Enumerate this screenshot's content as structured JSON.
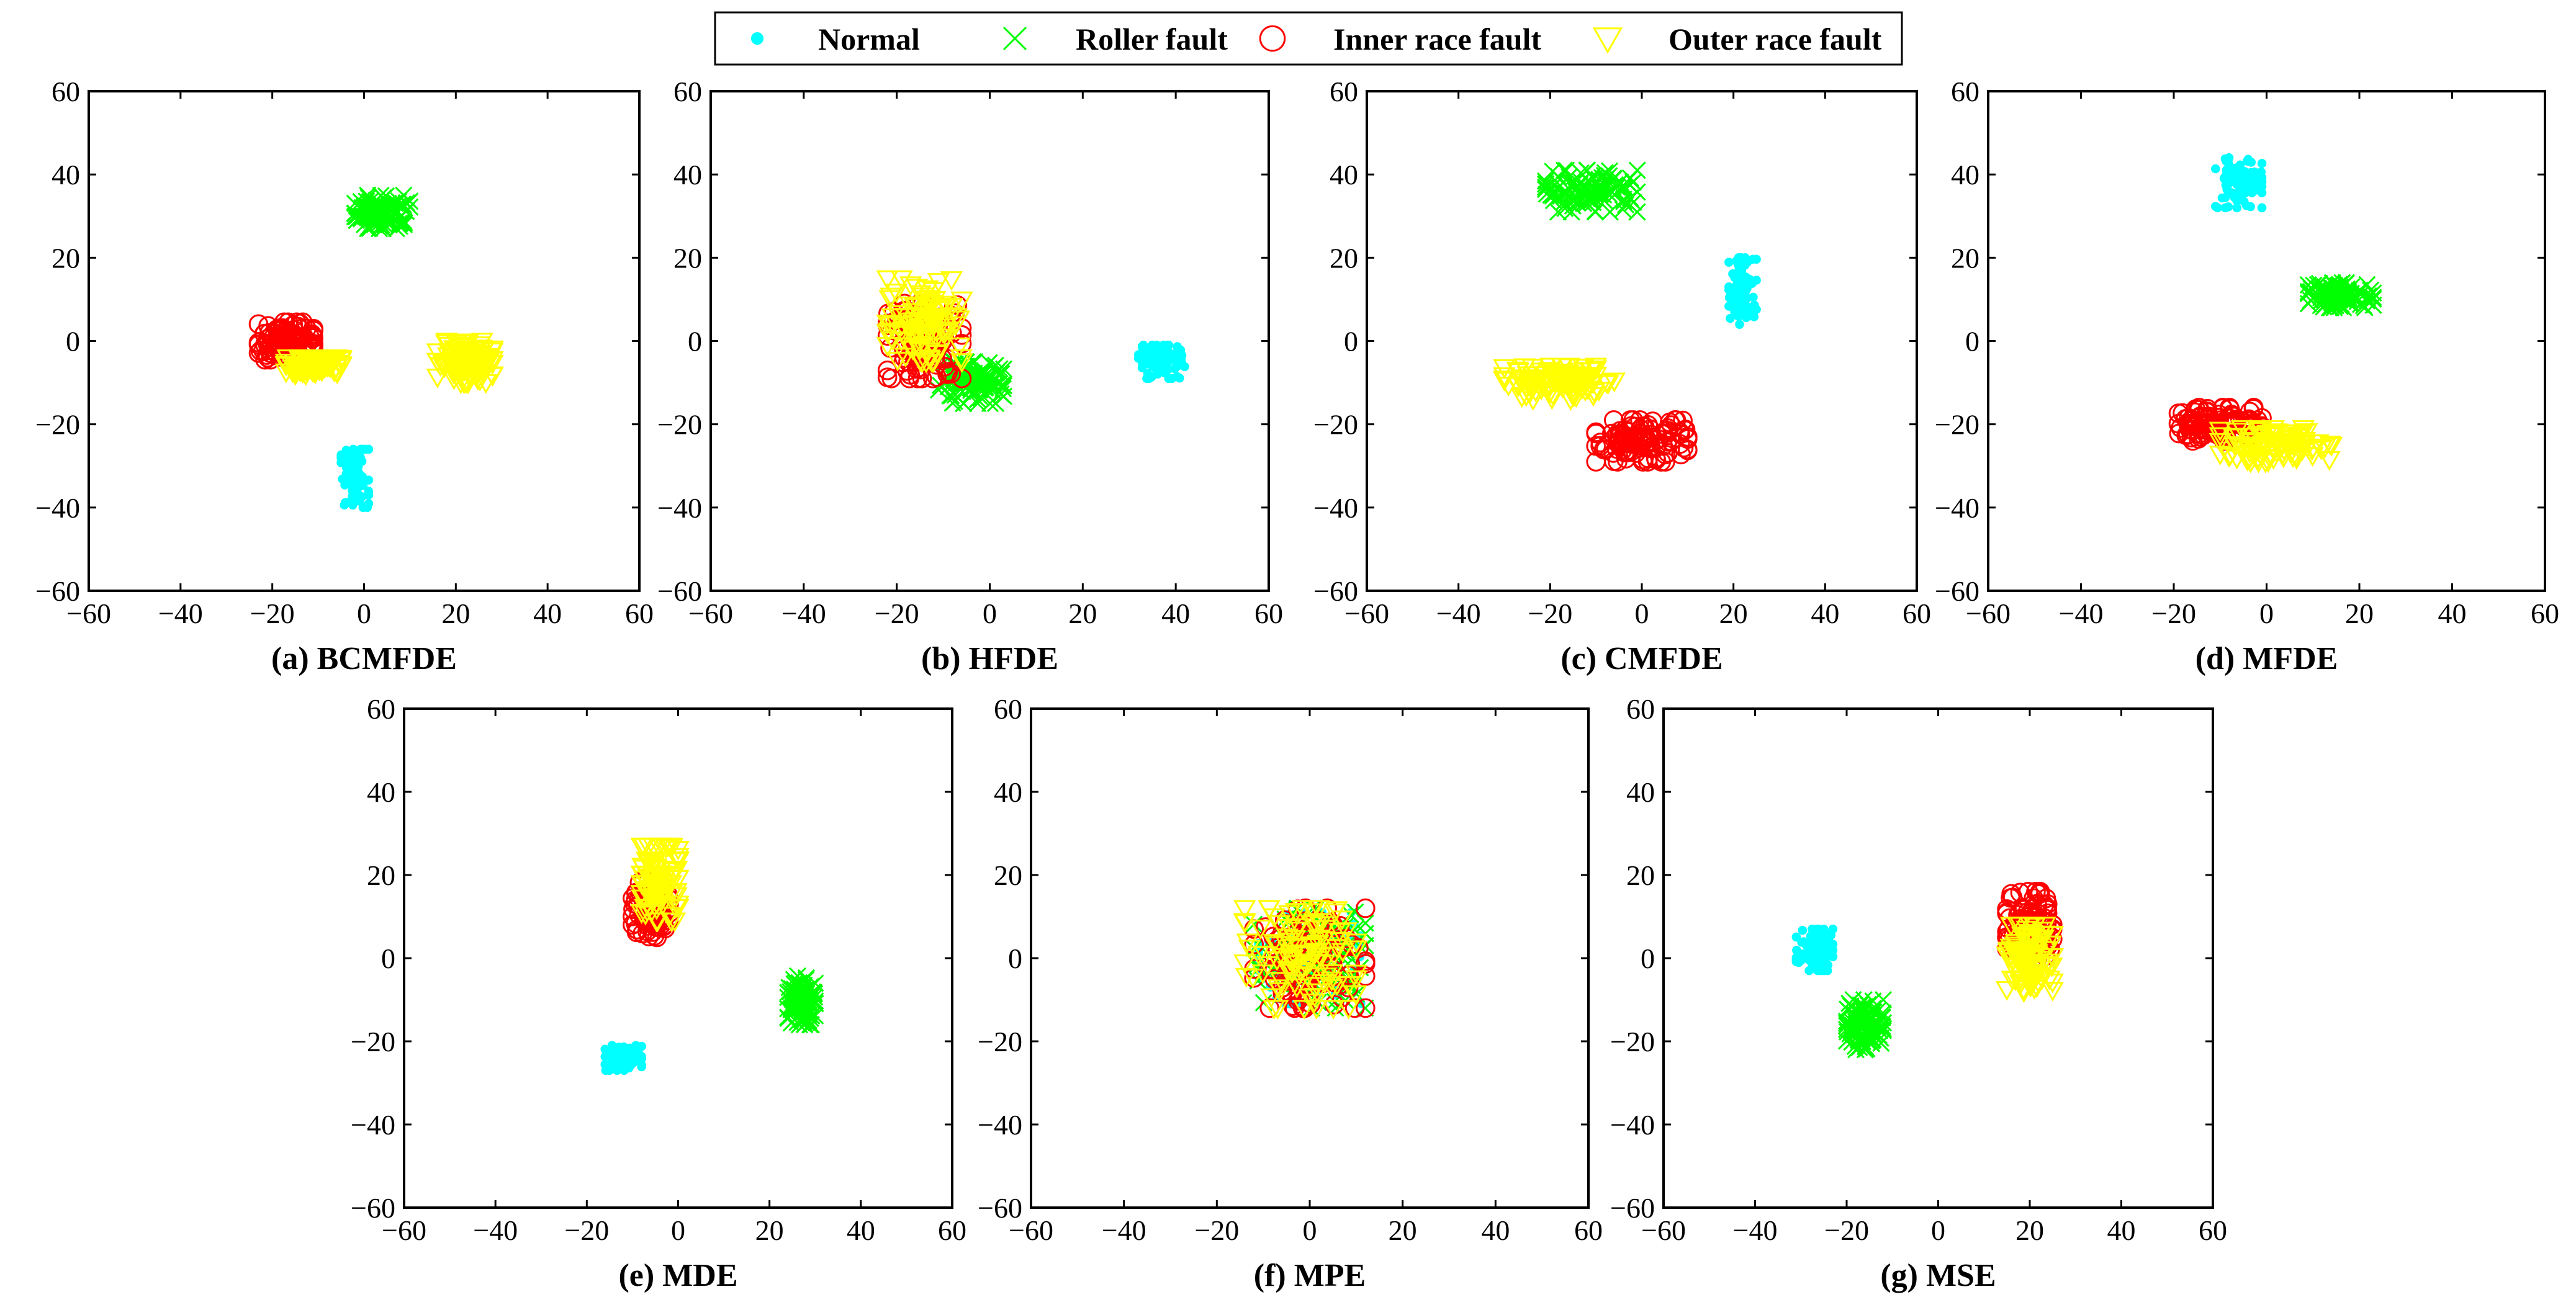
{
  "figure": {
    "legend": [
      {
        "label": "Normal",
        "color": "#00FFFF",
        "marker": "point",
        "icon": "dot-icon"
      },
      {
        "label": "Roller fault",
        "color": "#00FF00",
        "marker": "x",
        "icon": "x-icon"
      },
      {
        "label": "Inner race fault",
        "color": "#FF0000",
        "marker": "circle",
        "icon": "circle-icon"
      },
      {
        "label": "Outer race fault",
        "color": "#FFFF00",
        "marker": "triangle-down",
        "icon": "triangle-down-icon"
      }
    ]
  },
  "chart_data": [
    {
      "type": "scatter",
      "caption": "(a) BCMFDE",
      "xlim": [
        -60,
        60
      ],
      "ylim": [
        -60,
        60
      ],
      "xticks": [
        -60,
        -40,
        -20,
        0,
        20,
        40,
        60
      ],
      "yticks": [
        -60,
        -40,
        -20,
        0,
        20,
        40,
        60
      ],
      "clusters": [
        {
          "series": "Normal",
          "center": [
            -2,
            -33
          ],
          "spread": [
            3,
            7
          ]
        },
        {
          "series": "Roller fault",
          "center": [
            4,
            31
          ],
          "spread": [
            6,
            4
          ]
        },
        {
          "series": "Inner race fault",
          "center": [
            -17,
            0
          ],
          "spread": [
            6,
            4.5
          ]
        },
        {
          "series": "Outer race fault",
          "center": [
            22,
            -5
          ],
          "spread": [
            6,
            5
          ]
        },
        {
          "series": "Outer race fault",
          "center": [
            -11,
            -6
          ],
          "spread": [
            6,
            2
          ]
        }
      ]
    },
    {
      "type": "scatter",
      "caption": "(b) HFDE",
      "xlim": [
        -60,
        60
      ],
      "ylim": [
        -60,
        60
      ],
      "xticks": [
        -60,
        -40,
        -20,
        0,
        20,
        40,
        60
      ],
      "yticks": [
        -60,
        -40,
        -20,
        0,
        20,
        40,
        60
      ],
      "clusters": [
        {
          "series": "Normal",
          "center": [
            37,
            -5
          ],
          "spread": [
            5,
            4
          ]
        },
        {
          "series": "Roller fault",
          "center": [
            -4,
            -10
          ],
          "spread": [
            7,
            5
          ]
        },
        {
          "series": "Inner race fault",
          "center": [
            -14,
            0
          ],
          "spread": [
            8,
            9
          ]
        },
        {
          "series": "Outer race fault",
          "center": [
            -14,
            5
          ],
          "spread": [
            8,
            10
          ]
        }
      ]
    },
    {
      "type": "scatter",
      "caption": "(c) CMFDE",
      "xlim": [
        -60,
        60
      ],
      "ylim": [
        -60,
        60
      ],
      "xticks": [
        -60,
        -40,
        -20,
        0,
        20,
        40,
        60
      ],
      "yticks": [
        -60,
        -40,
        -20,
        0,
        20,
        40,
        60
      ],
      "clusters": [
        {
          "series": "Normal",
          "center": [
            22,
            12
          ],
          "spread": [
            3,
            8
          ]
        },
        {
          "series": "Roller fault",
          "center": [
            -11,
            36
          ],
          "spread": [
            10,
            5
          ]
        },
        {
          "series": "Inner race fault",
          "center": [
            0,
            -24
          ],
          "spread": [
            10,
            5
          ]
        },
        {
          "series": "Outer race fault",
          "center": [
            -18,
            -10
          ],
          "spread": [
            12,
            4
          ]
        }
      ]
    },
    {
      "type": "scatter",
      "caption": "(d) MFDE",
      "xlim": [
        -60,
        60
      ],
      "ylim": [
        -60,
        60
      ],
      "xticks": [
        -60,
        -40,
        -20,
        0,
        20,
        40,
        60
      ],
      "yticks": [
        -60,
        -40,
        -20,
        0,
        20,
        40,
        60
      ],
      "clusters": [
        {
          "series": "Normal",
          "center": [
            -6,
            38
          ],
          "spread": [
            5,
            6
          ]
        },
        {
          "series": "Roller fault",
          "center": [
            16,
            11
          ],
          "spread": [
            7,
            3
          ]
        },
        {
          "series": "Inner race fault",
          "center": [
            -10,
            -20
          ],
          "spread": [
            9,
            4
          ]
        },
        {
          "series": "Outer race fault",
          "center": [
            2,
            -25
          ],
          "spread": [
            12,
            4
          ]
        }
      ]
    },
    {
      "type": "scatter",
      "caption": "(e) MDE",
      "xlim": [
        -60,
        60
      ],
      "ylim": [
        -60,
        60
      ],
      "xticks": [
        -60,
        -40,
        -20,
        0,
        20,
        40,
        60
      ],
      "yticks": [
        -60,
        -40,
        -20,
        0,
        20,
        40,
        60
      ],
      "clusters": [
        {
          "series": "Normal",
          "center": [
            -12,
            -24
          ],
          "spread": [
            4,
            3
          ]
        },
        {
          "series": "Roller fault",
          "center": [
            27,
            -10
          ],
          "spread": [
            3,
            6
          ]
        },
        {
          "series": "Inner race fault",
          "center": [
            -6,
            12
          ],
          "spread": [
            4,
            7
          ]
        },
        {
          "series": "Outer race fault",
          "center": [
            -4,
            18
          ],
          "spread": [
            4,
            9
          ]
        }
      ]
    },
    {
      "type": "scatter",
      "caption": "(f) MPE",
      "xlim": [
        -60,
        60
      ],
      "ylim": [
        -60,
        60
      ],
      "xticks": [
        -60,
        -40,
        -20,
        0,
        20,
        40,
        60
      ],
      "yticks": [
        -60,
        -40,
        -20,
        0,
        20,
        40,
        60
      ],
      "clusters": [
        {
          "series": "Normal",
          "center": [
            0,
            0
          ],
          "spread": [
            11,
            11
          ]
        },
        {
          "series": "Roller fault",
          "center": [
            0,
            0
          ],
          "spread": [
            12,
            12
          ]
        },
        {
          "series": "Inner race fault",
          "center": [
            0,
            0
          ],
          "spread": [
            12,
            12
          ]
        },
        {
          "series": "Outer race fault",
          "center": [
            -2,
            0
          ],
          "spread": [
            12,
            12
          ]
        }
      ]
    },
    {
      "type": "scatter",
      "caption": "(g) MSE",
      "xlim": [
        -60,
        60
      ],
      "ylim": [
        -60,
        60
      ],
      "xticks": [
        -60,
        -40,
        -20,
        0,
        20,
        40,
        60
      ],
      "yticks": [
        -60,
        -40,
        -20,
        0,
        20,
        40,
        60
      ],
      "clusters": [
        {
          "series": "Normal",
          "center": [
            -27,
            2
          ],
          "spread": [
            4,
            5
          ]
        },
        {
          "series": "Roller fault",
          "center": [
            -16,
            -16
          ],
          "spread": [
            4,
            6
          ]
        },
        {
          "series": "Inner race fault",
          "center": [
            20,
            8
          ],
          "spread": [
            5,
            8
          ]
        },
        {
          "series": "Outer race fault",
          "center": [
            20,
            0
          ],
          "spread": [
            5,
            8
          ]
        }
      ]
    }
  ]
}
